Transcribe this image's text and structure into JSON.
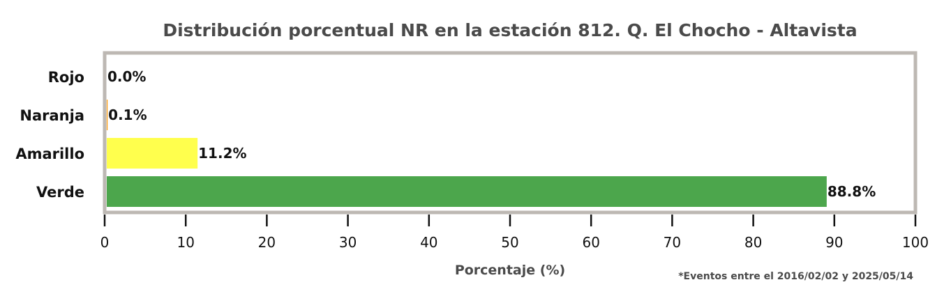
{
  "chart_data": {
    "type": "bar",
    "orientation": "horizontal",
    "title": "Distribución porcentual NR en la estación 812. Q. El Chocho - Altavista",
    "categories": [
      "Rojo",
      "Naranja",
      "Amarillo",
      "Verde"
    ],
    "values": [
      0.0,
      0.1,
      11.2,
      88.8
    ],
    "data_labels": [
      "0.0%",
      "0.1%",
      "11.2%",
      "88.8%"
    ],
    "bar_colors": [
      "#e53935",
      "#ff9800",
      "#ffff4d",
      "#4ca64c"
    ],
    "xlabel": "Porcentaje (%)",
    "ylabel": "",
    "xlim": [
      0,
      100
    ],
    "xticks": [
      0,
      10,
      20,
      30,
      40,
      50,
      60,
      70,
      80,
      90,
      100
    ],
    "grid": false,
    "frame_color": "#bdb8b3",
    "footnote": "*Eventos entre el 2016/02/02 y 2025/05/14"
  }
}
